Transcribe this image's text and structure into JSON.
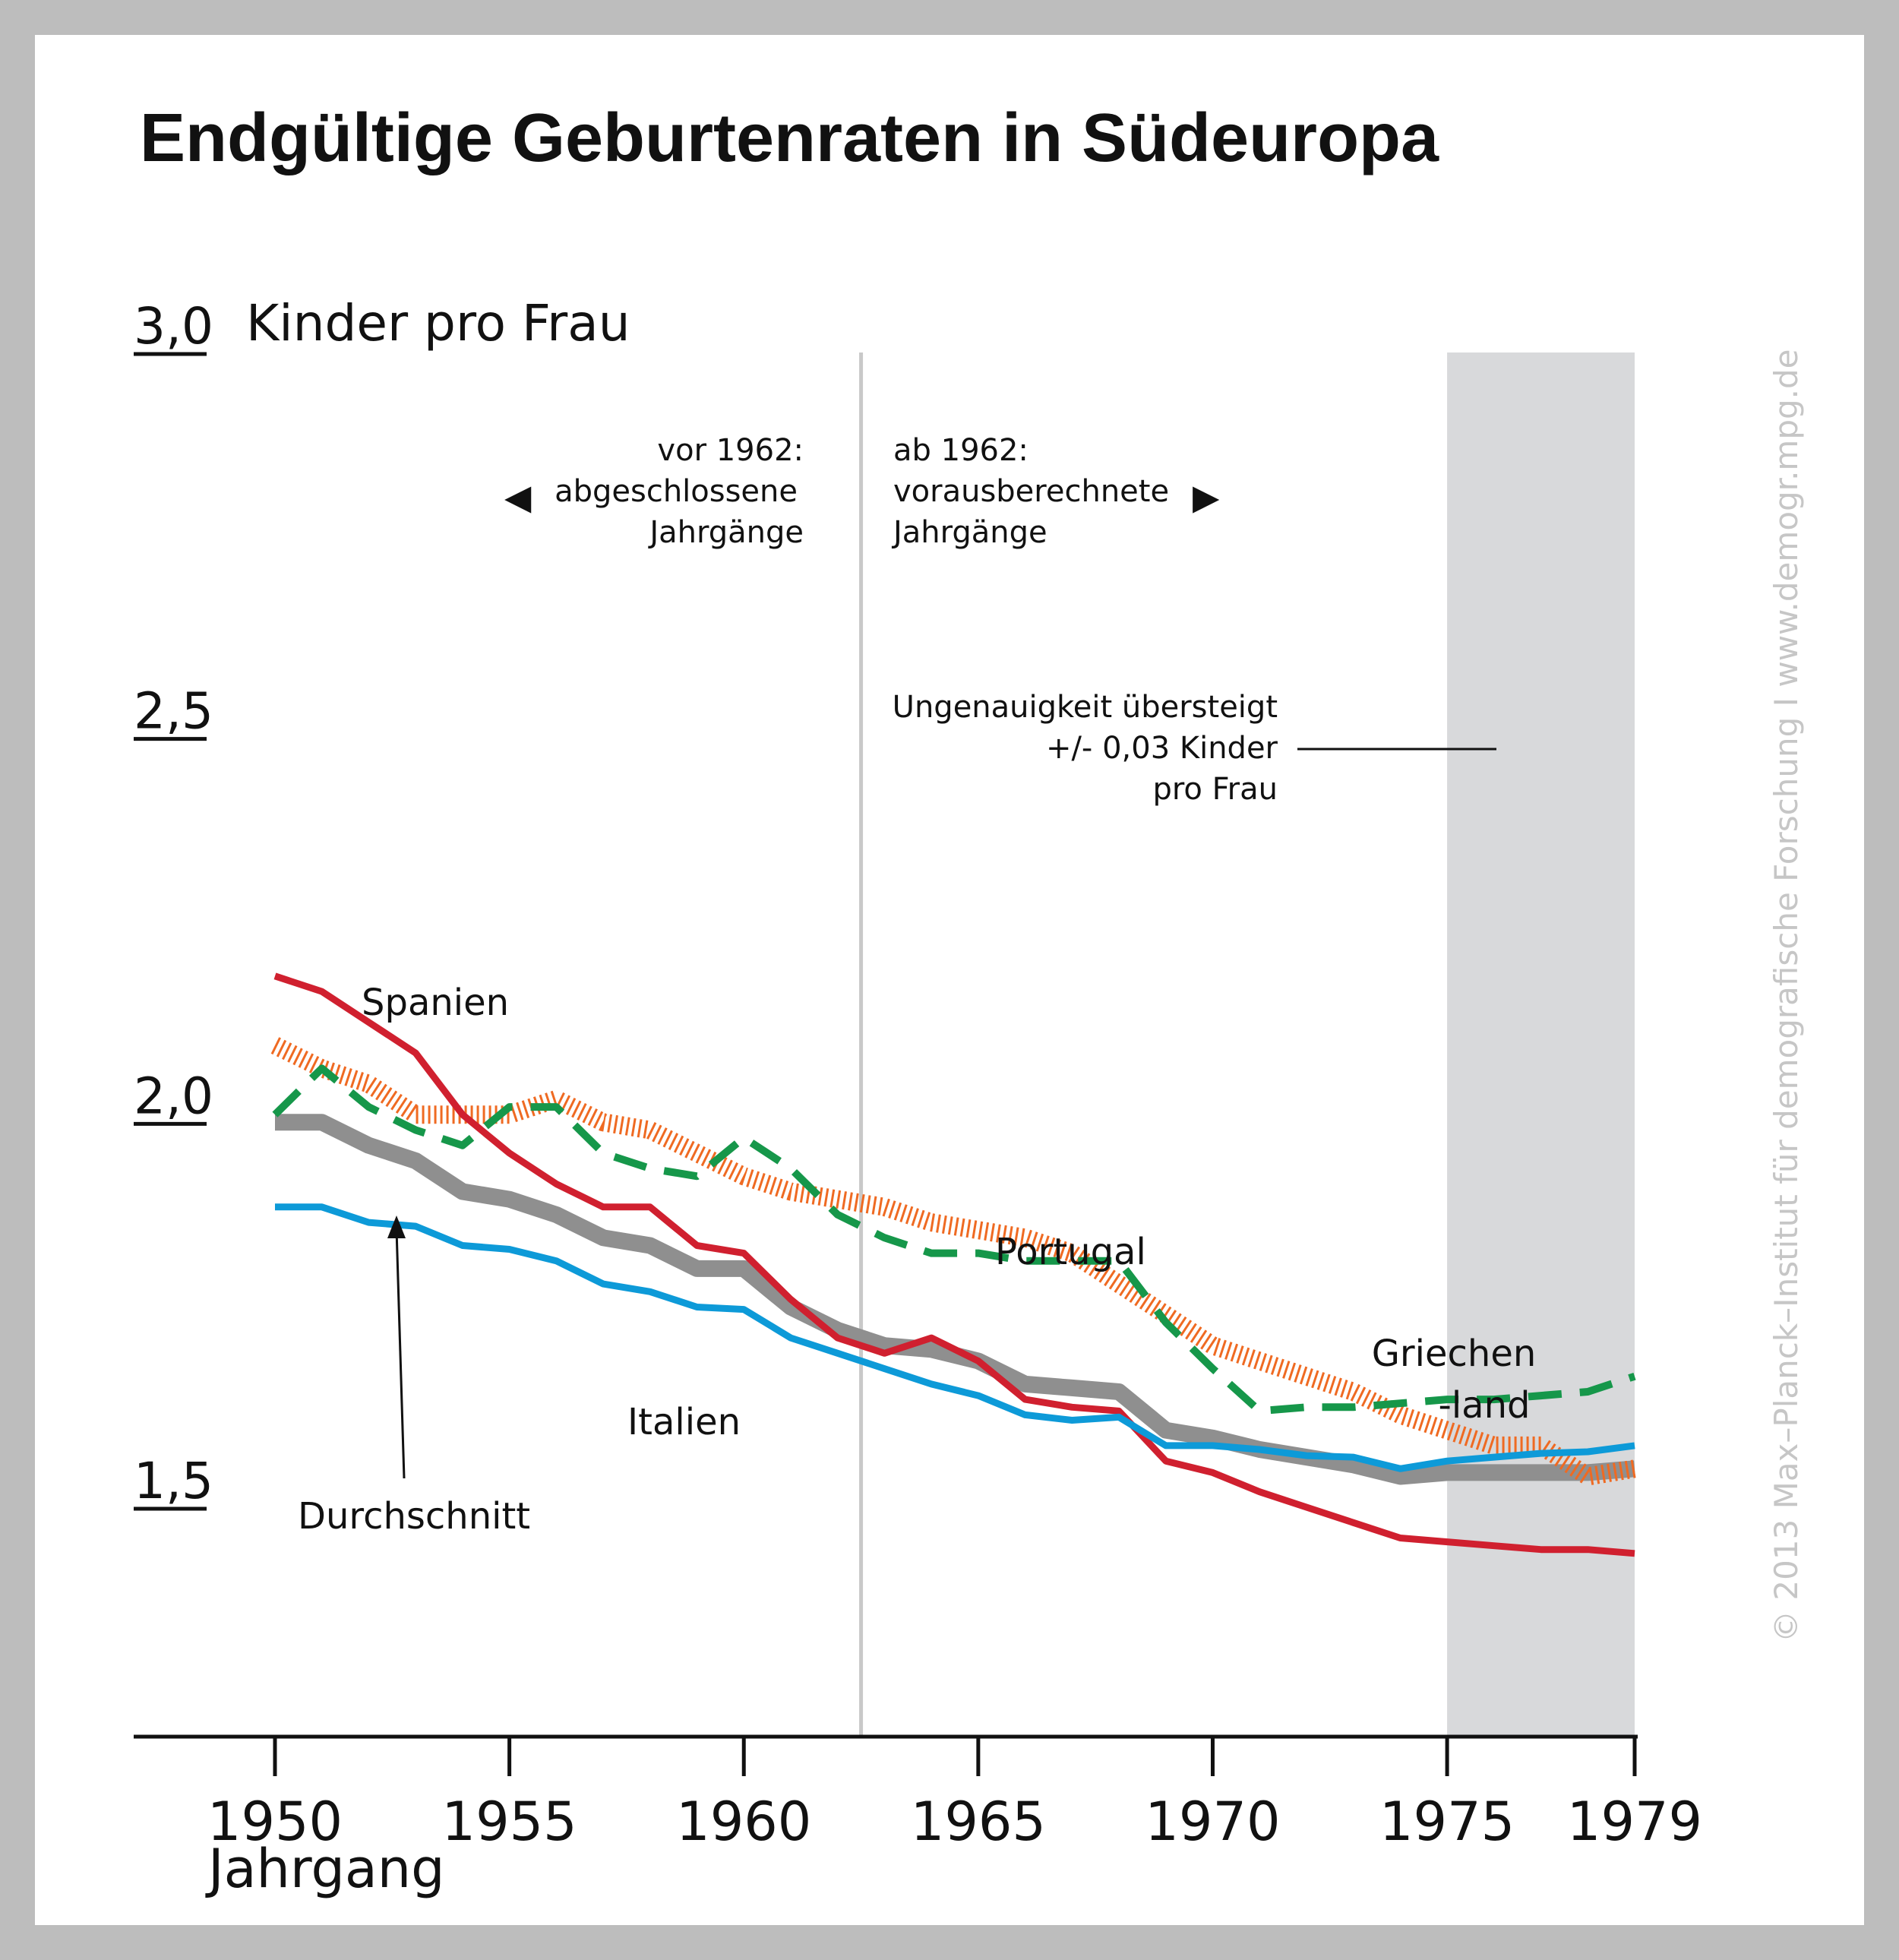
{
  "chart_data": {
    "type": "line",
    "title": "Endgültige Geburtenraten in Südeuropa",
    "ylabel": "Kinder pro Frau",
    "xlabel": "Jahrgang",
    "xlim": [
      1950,
      1979
    ],
    "ylim": [
      1.25,
      3.0
    ],
    "y_ticks": [
      "3,0",
      "2,5",
      "2,0",
      "1,5"
    ],
    "x_ticks": [
      "1950",
      "1955",
      "1960",
      "1965",
      "1970",
      "1975",
      "1979"
    ],
    "x": [
      1950,
      1951,
      1952,
      1953,
      1954,
      1955,
      1956,
      1957,
      1958,
      1959,
      1960,
      1961,
      1962,
      1963,
      1964,
      1965,
      1966,
      1967,
      1968,
      1969,
      1970,
      1971,
      1972,
      1973,
      1974,
      1975,
      1976,
      1977,
      1978,
      1979
    ],
    "series": [
      {
        "name": "Spanien",
        "color": "#d0202f",
        "style": "solid",
        "values": [
          2.19,
          2.17,
          2.13,
          2.09,
          2.01,
          1.96,
          1.92,
          1.89,
          1.89,
          1.84,
          1.83,
          1.77,
          1.72,
          1.7,
          1.72,
          1.69,
          1.64,
          1.63,
          1.625,
          1.56,
          1.545,
          1.52,
          1.5,
          1.48,
          1.46,
          1.455,
          1.45,
          1.445,
          1.445,
          1.44
        ]
      },
      {
        "name": "Italien",
        "color": "#0d9ad8",
        "style": "solid",
        "values": [
          1.89,
          1.89,
          1.87,
          1.865,
          1.84,
          1.835,
          1.82,
          1.79,
          1.78,
          1.76,
          1.757,
          1.72,
          1.7,
          1.68,
          1.66,
          1.645,
          1.62,
          1.613,
          1.617,
          1.58,
          1.58,
          1.575,
          1.567,
          1.565,
          1.55,
          1.56,
          1.565,
          1.57,
          1.572,
          1.58
        ]
      },
      {
        "name": "Durchschnitt",
        "color": "#8f8f8f",
        "style": "band",
        "values": [
          2.0,
          2.0,
          1.97,
          1.95,
          1.91,
          1.9,
          1.88,
          1.85,
          1.84,
          1.81,
          1.81,
          1.76,
          1.73,
          1.71,
          1.705,
          1.69,
          1.66,
          1.655,
          1.65,
          1.6,
          1.59,
          1.575,
          1.565,
          1.555,
          1.54,
          1.545,
          1.545,
          1.545,
          1.545,
          1.55
        ]
      },
      {
        "name": "Portugal",
        "color": "#ef6a22",
        "style": "hatched",
        "values": [
          2.1,
          2.07,
          2.05,
          2.01,
          2.01,
          2.01,
          2.03,
          2.0,
          1.99,
          1.96,
          1.93,
          1.91,
          1.9,
          1.89,
          1.87,
          1.86,
          1.85,
          1.83,
          1.79,
          1.75,
          1.71,
          1.69,
          1.67,
          1.65,
          1.62,
          1.6,
          1.58,
          1.58,
          1.54,
          1.55
        ]
      },
      {
        "name": "Griechenland",
        "color": "#16974a",
        "style": "dashed",
        "values": [
          2.01,
          2.07,
          2.02,
          1.99,
          1.97,
          2.02,
          2.02,
          1.96,
          1.94,
          1.93,
          1.98,
          1.94,
          1.88,
          1.85,
          1.83,
          1.83,
          1.82,
          1.82,
          1.82,
          1.74,
          1.68,
          1.625,
          1.63,
          1.63,
          1.635,
          1.64,
          1.64,
          1.645,
          1.65,
          1.67
        ]
      }
    ],
    "vertical_divider_year": 1962.5,
    "shaded_region": {
      "from": 1975,
      "to": 1979,
      "color": "#d8d9db"
    },
    "grid": false,
    "legend": "labels on lines"
  },
  "annotations": {
    "left_block": [
      "vor 1962:",
      "abgeschlossene",
      "Jahrgänge"
    ],
    "right_block": [
      "ab 1962:",
      "vorausberechnete",
      "Jahrgänge"
    ],
    "left_arrow": "◀",
    "right_arrow": "▶",
    "uncertainty": [
      "Ungenauigkeit übersteigt",
      "+/- 0,03 Kinder",
      "pro Frau"
    ],
    "griechen_label": [
      "Griechen",
      "-land"
    ]
  },
  "credit": "© 2013 Max–Planck–Institut für demografische Forschung I www.demogr.mpg.de"
}
